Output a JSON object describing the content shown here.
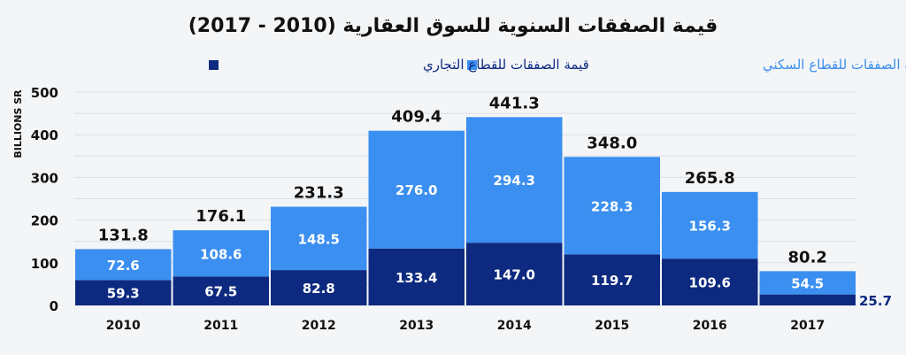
{
  "chart_data": {
    "type": "bar",
    "stacked": true,
    "title": "قيمة الصفقات السنوية للسوق العقارية (2010 - 2017)",
    "ylabel": "BILLIONS SR",
    "xlabel": "",
    "ylim": [
      0,
      500
    ],
    "yticks": [
      0,
      100,
      200,
      300,
      400,
      500
    ],
    "grid": true,
    "legend_position": "top",
    "categories": [
      "2010",
      "2011",
      "2012",
      "2013",
      "2014",
      "2015",
      "2016",
      "2017"
    ],
    "series": [
      {
        "name": "قيمة الصفقات للقطاع التجاري",
        "color": "#0d2a80",
        "values": [
          59.3,
          67.5,
          82.8,
          133.4,
          147.0,
          119.7,
          109.6,
          25.7
        ]
      },
      {
        "name": "قيمة الصفقات للقطاع السكني",
        "color": "#3b8ff0",
        "values": [
          72.6,
          108.6,
          148.5,
          276.0,
          294.3,
          228.3,
          156.3,
          54.5
        ]
      }
    ],
    "totals": [
      131.8,
      176.1,
      231.3,
      409.4,
      441.3,
      348.0,
      265.8,
      80.2
    ]
  }
}
